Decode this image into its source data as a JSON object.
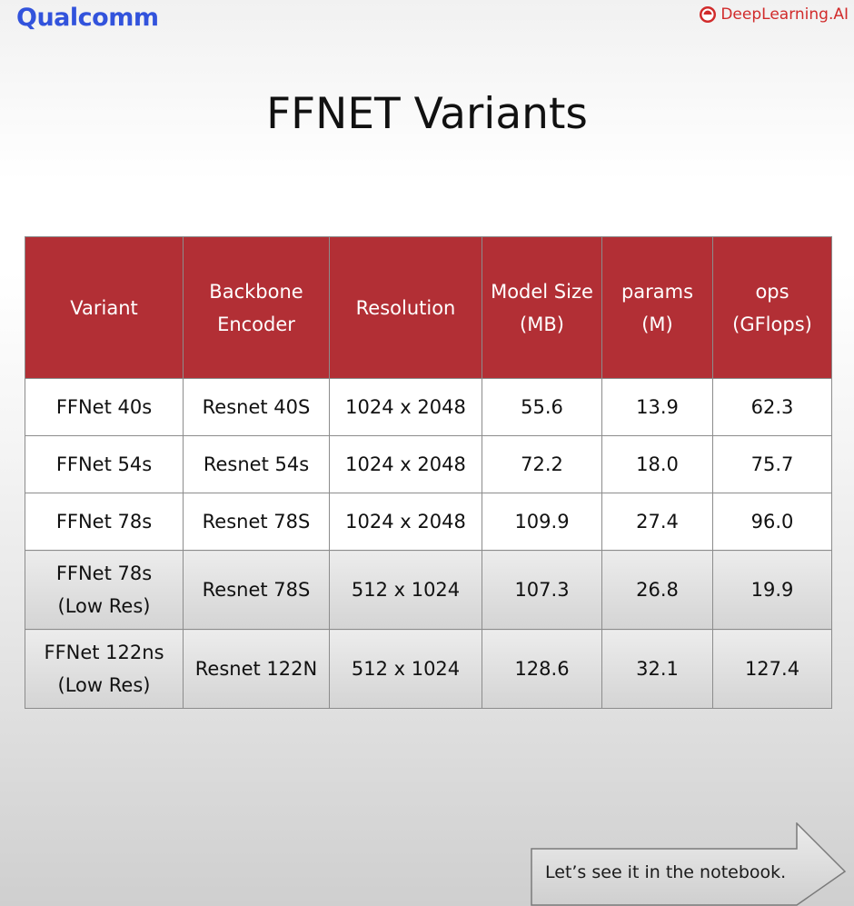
{
  "header": {
    "brand_left": "Qualcomm",
    "brand_right": "DeepLearning.AI",
    "brand_right_icon": "deeplearning-logo-icon",
    "brand_left_color": "#3253dc",
    "brand_right_color": "#d12b2b"
  },
  "slide": {
    "title": "FFNET Variants"
  },
  "table": {
    "header_color": "#b22f35",
    "columns": [
      "Variant",
      "Backbone Encoder",
      "Resolution",
      "Model Size (MB)",
      "params (M)",
      "ops (GFlops)"
    ],
    "rows": [
      [
        "FFNet 40s",
        "Resnet 40S",
        "1024 x 2048",
        "55.6",
        "13.9",
        "62.3"
      ],
      [
        "FFNet 54s",
        "Resnet 54s",
        "1024 x 2048",
        "72.2",
        "18.0",
        "75.7"
      ],
      [
        "FFNet 78s",
        "Resnet 78S",
        "1024 x 2048",
        "109.9",
        "27.4",
        "96.0"
      ],
      [
        "FFNet 78s (Low Res)",
        "Resnet 78S",
        "512 x 1024",
        "107.3",
        "26.8",
        "19.9"
      ],
      [
        "FFNet 122ns (Low Res)",
        "Resnet 122N",
        "512 x 1024",
        "128.6",
        "32.1",
        "127.4"
      ]
    ]
  },
  "cta": {
    "label": "Let’s see it in the notebook.",
    "icon": "arrow-right-icon"
  }
}
